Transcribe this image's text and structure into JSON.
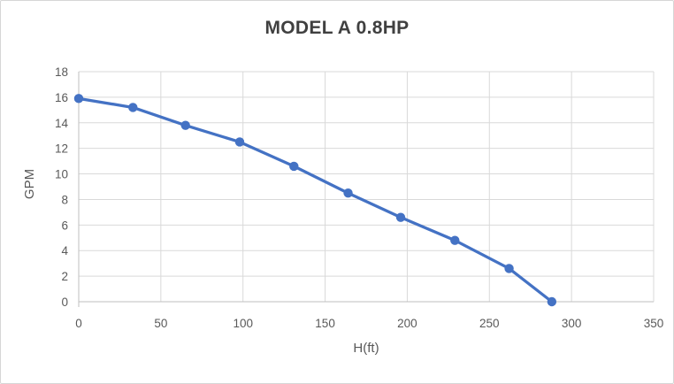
{
  "window": {
    "background": "#ffffff",
    "border_color": "#d6d6d6"
  },
  "chart_data": {
    "type": "line",
    "title": "MODEL A 0.8HP",
    "xlabel": "H(ft)",
    "ylabel": "GPM",
    "x": [
      0,
      33,
      65,
      98,
      131,
      164,
      196,
      229,
      262,
      288
    ],
    "y": [
      15.9,
      15.2,
      13.8,
      12.5,
      10.6,
      8.5,
      6.6,
      4.8,
      2.6,
      0
    ],
    "xlim": [
      0,
      350
    ],
    "ylim": [
      0,
      18
    ],
    "x_ticks": [
      0,
      50,
      100,
      150,
      200,
      250,
      300,
      350
    ],
    "y_ticks": [
      0,
      2,
      4,
      6,
      8,
      10,
      12,
      14,
      16,
      18
    ],
    "grid": true,
    "legend": false,
    "marker": "circle",
    "colors": {
      "series": "#4472C4",
      "gridline": "#D9D9D9",
      "axis_line": "#BFBFBF",
      "tick_label": "#595959",
      "axis_title": "#595959",
      "title": "#404040"
    }
  }
}
